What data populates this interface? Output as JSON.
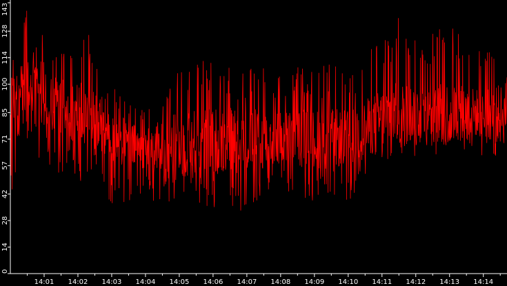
{
  "chart_data": {
    "type": "line",
    "title": "",
    "xlabel": "",
    "ylabel": "",
    "line_color": "#ff0000",
    "background_color": "#000000",
    "axis_color": "#ffffff",
    "ylim": [
      0,
      143
    ],
    "y_ticks": [
      0,
      14,
      28,
      42,
      57,
      71,
      85,
      100,
      114,
      128,
      143
    ],
    "x_range_minutes": [
      0.0,
      14.7
    ],
    "x_ticks": [
      {
        "minute": 1,
        "label": "14:01"
      },
      {
        "minute": 2,
        "label": "14:02"
      },
      {
        "minute": 3,
        "label": "14:03"
      },
      {
        "minute": 4,
        "label": "14:04"
      },
      {
        "minute": 5,
        "label": "14:05"
      },
      {
        "minute": 6,
        "label": "14:06"
      },
      {
        "minute": 7,
        "label": "14:07"
      },
      {
        "minute": 8,
        "label": "14:08"
      },
      {
        "minute": 9,
        "label": "14:09"
      },
      {
        "minute": 10,
        "label": "14:10"
      },
      {
        "minute": 11,
        "label": "14:11"
      },
      {
        "minute": 12,
        "label": "14:12"
      },
      {
        "minute": 13,
        "label": "14:13"
      },
      {
        "minute": 14,
        "label": "14:14"
      }
    ],
    "series": [
      {
        "x": [
          0.0,
          0.5,
          1.0,
          1.5,
          2.0,
          2.5,
          3.0,
          3.5,
          4.0,
          4.5,
          5.0,
          5.5,
          6.0,
          6.5,
          7.0,
          7.5,
          8.0,
          8.5,
          9.0,
          9.5,
          10.0,
          10.5,
          11.0,
          11.5,
          12.0,
          12.5,
          13.0,
          13.5,
          14.0,
          14.5,
          14.7
        ],
        "y_mean": [
          88,
          93,
          91,
          88,
          85,
          80,
          73,
          68,
          66,
          66,
          68,
          68,
          70,
          71,
          70,
          71,
          71,
          72,
          71,
          71,
          72,
          76,
          82,
          85,
          85,
          84,
          85,
          86,
          84,
          84,
          85
        ],
        "y_max": [
          110,
          143,
          125,
          118,
          121,
          132,
          104,
          92,
          88,
          106,
          116,
          118,
          113,
          110,
          108,
          111,
          109,
          110,
          107,
          114,
          102,
          118,
          125,
          136,
          128,
          128,
          140,
          122,
          118,
          126,
          104
        ],
        "y_min": [
          33,
          56,
          60,
          52,
          48,
          50,
          36,
          38,
          40,
          36,
          38,
          33,
          35,
          28,
          32,
          40,
          43,
          40,
          38,
          42,
          38,
          48,
          55,
          62,
          62,
          62,
          64,
          62,
          62,
          55,
          62
        ]
      }
    ]
  }
}
